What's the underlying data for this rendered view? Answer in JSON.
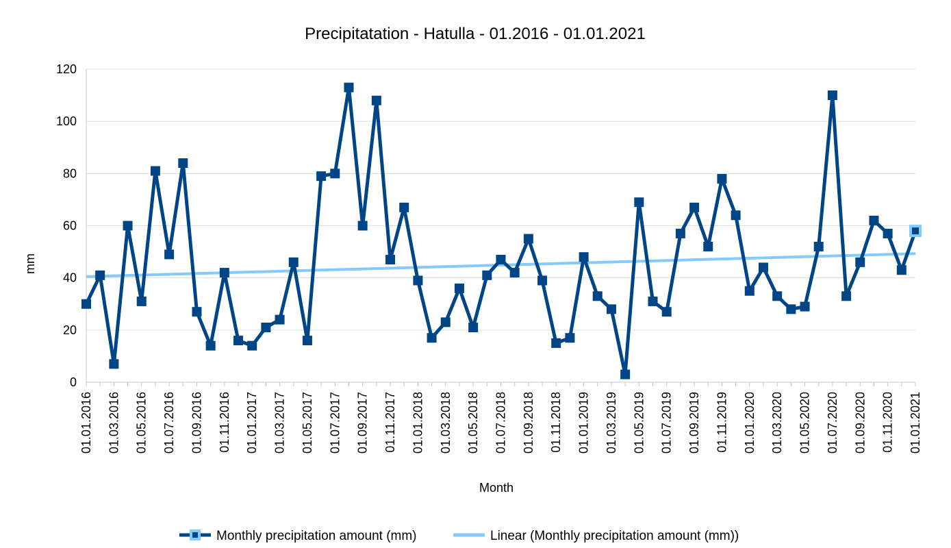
{
  "chart_data": {
    "type": "line",
    "title": "Precipitatation - Hatulla - 01.2016 - 01.01.2021",
    "xlabel": "Month",
    "ylabel": "mm",
    "ylim": [
      0,
      120
    ],
    "yticks": [
      0,
      20,
      40,
      60,
      80,
      100,
      120
    ],
    "grid": true,
    "legend_position": "bottom",
    "x_tick_labels": [
      "01.01.2016",
      "01.03.2016",
      "01.05.2016",
      "01.07.2016",
      "01.09.2016",
      "01.11.2016",
      "01.01.2017",
      "01.03.2017",
      "01.05.2017",
      "01.07.2017",
      "01.09.2017",
      "01.11.2017",
      "01.01.2018",
      "01.03.2018",
      "01.05.2018",
      "01.07.2018",
      "01.09.2018",
      "01.11.2018",
      "01.01.2019",
      "01.03.2019",
      "01.05.2019",
      "01.07.2019",
      "01.09.2019",
      "01.11.2019",
      "01.01.2020",
      "01.03.2020",
      "01.05.2020",
      "01.07.2020",
      "01.09.2020",
      "01.11.2020",
      "01.01.2021"
    ],
    "series": [
      {
        "name": "Monthly precipitation amount (mm)",
        "color": "#004586",
        "marker": "square",
        "values": [
          30,
          41,
          7,
          60,
          31,
          81,
          49,
          84,
          27,
          14,
          42,
          16,
          14,
          21,
          24,
          46,
          16,
          79,
          80,
          113,
          60,
          108,
          47,
          67,
          39,
          17,
          23,
          36,
          21,
          41,
          47,
          42,
          55,
          39,
          15,
          17,
          48,
          33,
          28,
          3,
          69,
          31,
          27,
          57,
          67,
          52,
          78,
          64,
          35,
          44,
          33,
          28,
          29,
          52,
          110,
          33,
          46,
          62,
          57,
          43,
          58
        ]
      },
      {
        "name": "Linear (Monthly precipitation amount (mm))",
        "color": "#83caff",
        "type": "trendline",
        "start": 40.5,
        "end": 49.3
      }
    ]
  }
}
